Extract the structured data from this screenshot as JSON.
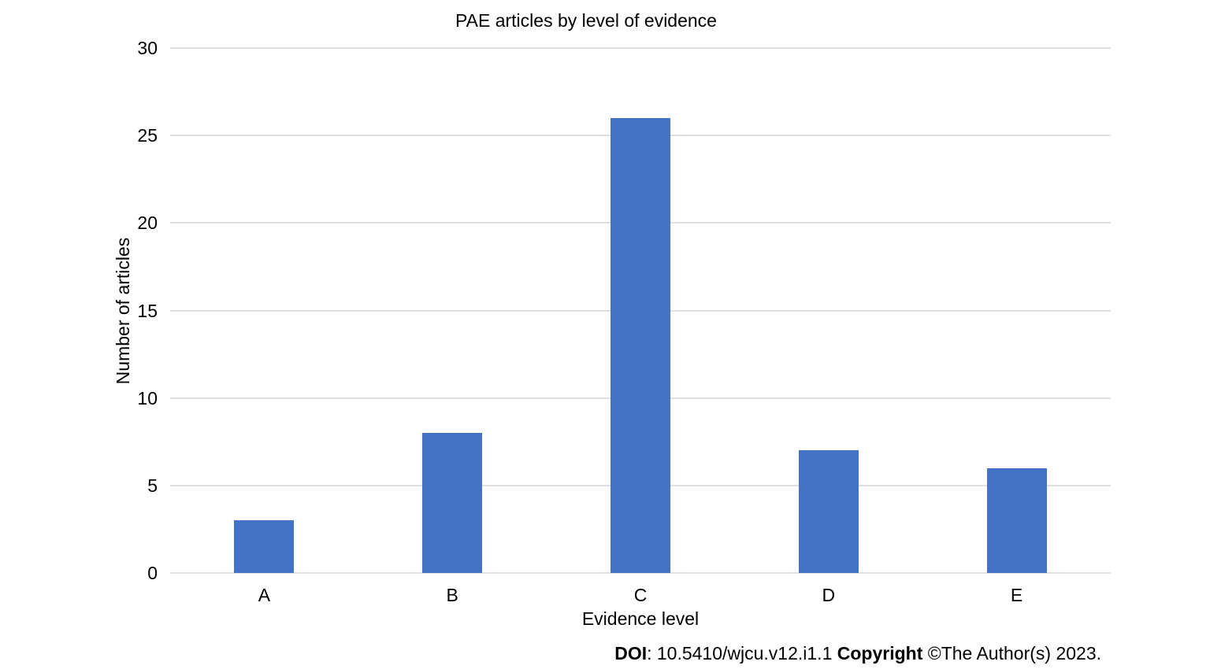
{
  "chart_data": {
    "type": "bar",
    "categories": [
      "A",
      "B",
      "C",
      "D",
      "E"
    ],
    "values": [
      3,
      8,
      26,
      7,
      6
    ],
    "title": "PAE articles by level of evidence",
    "xlabel": "Evidence level",
    "ylabel": "Number of articles",
    "ylim": [
      0,
      30
    ],
    "yticks": [
      0,
      5,
      10,
      15,
      20,
      25,
      30
    ],
    "grid": true,
    "legend": false,
    "bar_color": "#4472C4",
    "gridline_color": "#E0E0E0",
    "text_color": "#000000",
    "background_color": "#FFFFFF"
  },
  "footer": {
    "doi_label": "DOI",
    "doi_rest": ": 10.5410/wjcu.v12.i1.1 ",
    "copyright_label": "Copyright",
    "copyright_rest": " ©The Author(s) 2023."
  }
}
